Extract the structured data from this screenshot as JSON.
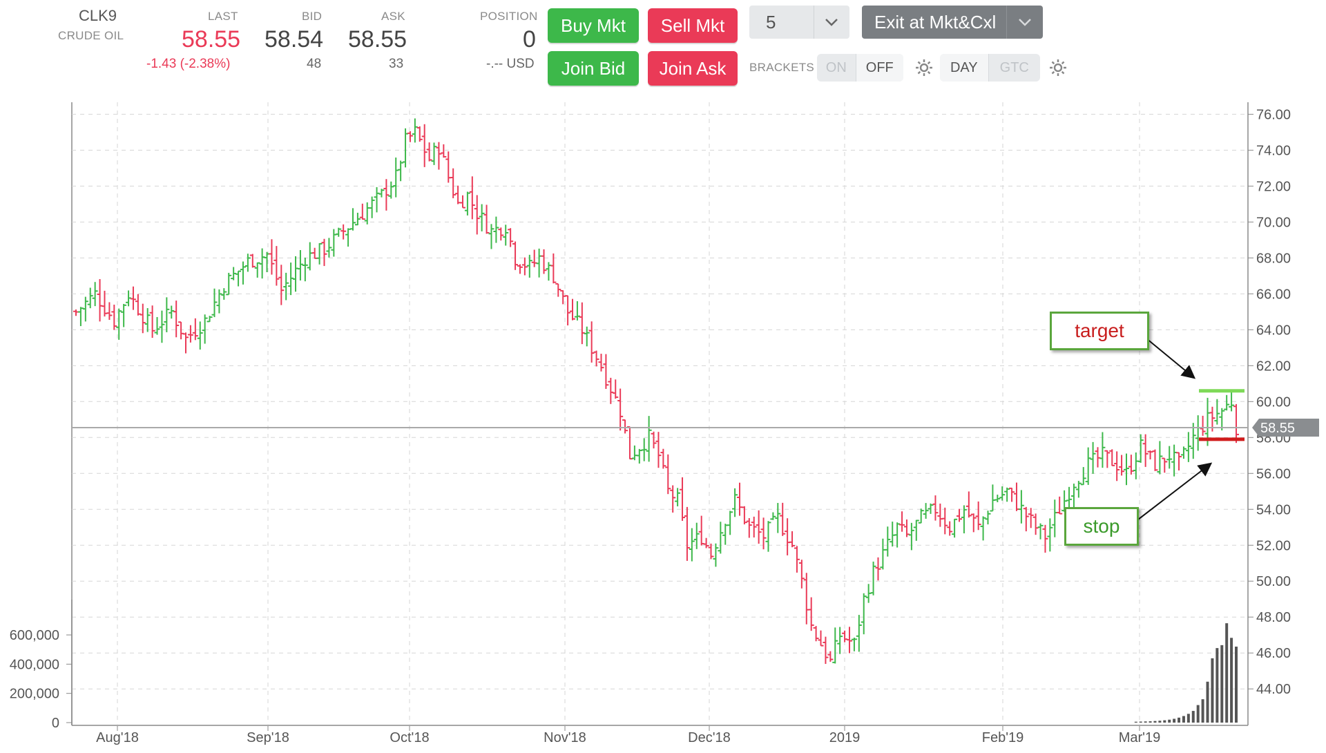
{
  "quote": {
    "symbol": "CLK9",
    "name": "CRUDE OIL",
    "last_label": "LAST",
    "last": "58.55",
    "change": "-1.43 (-2.38%)",
    "bid_label": "BID",
    "bid": "58.54",
    "bid_size": "48",
    "ask_label": "ASK",
    "ask": "58.55",
    "ask_size": "33",
    "position_label": "POSITION",
    "position": "0",
    "pnl": "-.-- USD"
  },
  "buttons": {
    "buy_mkt": "Buy Mkt",
    "sell_mkt": "Sell Mkt",
    "join_bid": "Join Bid",
    "join_ask": "Join Ask",
    "quantity": "5",
    "exit": "Exit at Mkt&Cxl"
  },
  "brackets": {
    "label": "BRACKETS",
    "on": "ON",
    "off": "OFF",
    "day": "DAY",
    "gtc": "GTC"
  },
  "annotations": {
    "target": "target",
    "stop": "stop",
    "current_price_tag": "58.55"
  },
  "colors": {
    "up": "#3db84a",
    "down": "#ea3a57",
    "target_line": "#7ed957",
    "stop_line": "#d01c1c",
    "callout_text": "#c81e1e",
    "stop_text": "#3a9a2a"
  },
  "chart_data": {
    "type": "bar",
    "subtype": "ohlc",
    "y_ticks": [
      "76.00",
      "74.00",
      "72.00",
      "70.00",
      "68.00",
      "66.00",
      "64.00",
      "62.00",
      "60.00",
      "58.00",
      "56.00",
      "54.00",
      "52.00",
      "50.00",
      "48.00",
      "46.00",
      "44.00"
    ],
    "ylim": [
      43.2,
      76.4
    ],
    "x_ticks": [
      "Aug'18",
      "Sep'18",
      "Oct'18",
      "Nov'18",
      "Dec'18",
      "2019",
      "Feb'19",
      "Mar'19"
    ],
    "volume_ticks": [
      "600,000",
      "400,000",
      "200,000",
      "0"
    ],
    "current_price": 58.55,
    "target_price": 60.6,
    "stop_price": 57.9,
    "close_path": [
      [
        0,
        65.0
      ],
      [
        4,
        66.0
      ],
      [
        8,
        64.5
      ],
      [
        11,
        66.0
      ],
      [
        16,
        64.0
      ],
      [
        20,
        65.0
      ],
      [
        23,
        63.5
      ],
      [
        27,
        64.5
      ],
      [
        31,
        66.5
      ],
      [
        36,
        67.8
      ],
      [
        40,
        68.2
      ],
      [
        43,
        66.2
      ],
      [
        48,
        68.0
      ],
      [
        52,
        68.5
      ],
      [
        56,
        69.5
      ],
      [
        60,
        70.5
      ],
      [
        64,
        71.5
      ],
      [
        67,
        72.5
      ],
      [
        69,
        74.5
      ],
      [
        71,
        75.0
      ],
      [
        74,
        73.5
      ],
      [
        76,
        74.2
      ],
      [
        78,
        72.5
      ],
      [
        80,
        71.0
      ],
      [
        82,
        71.5
      ],
      [
        84,
        70.5
      ],
      [
        87,
        69.5
      ],
      [
        90,
        69.8
      ],
      [
        92,
        68.0
      ],
      [
        95,
        67.5
      ],
      [
        97,
        68.0
      ],
      [
        100,
        67.0
      ],
      [
        103,
        65.0
      ],
      [
        106,
        64.0
      ],
      [
        110,
        62.0
      ],
      [
        114,
        59.5
      ],
      [
        116,
        57.0
      ],
      [
        118,
        57.5
      ],
      [
        120,
        58.0
      ],
      [
        122,
        57.0
      ],
      [
        124,
        55.0
      ],
      [
        126,
        54.5
      ],
      [
        128,
        52.0
      ],
      [
        131,
        52.5
      ],
      [
        133,
        51.5
      ],
      [
        136,
        53.5
      ],
      [
        138,
        54.5
      ],
      [
        141,
        53.0
      ],
      [
        144,
        52.5
      ],
      [
        147,
        53.5
      ],
      [
        150,
        52.0
      ],
      [
        152,
        50.0
      ],
      [
        154,
        47.5
      ],
      [
        156,
        46.5
      ],
      [
        158,
        45.5
      ],
      [
        160,
        47.0
      ],
      [
        163,
        46.5
      ],
      [
        165,
        49.0
      ],
      [
        167,
        50.5
      ],
      [
        170,
        52.0
      ],
      [
        172,
        53.0
      ],
      [
        174,
        52.5
      ],
      [
        177,
        53.5
      ],
      [
        180,
        54.0
      ],
      [
        183,
        53.0
      ],
      [
        186,
        54.0
      ],
      [
        189,
        53.0
      ],
      [
        192,
        54.5
      ],
      [
        195,
        55.0
      ],
      [
        198,
        54.0
      ],
      [
        201,
        53.0
      ],
      [
        203,
        52.5
      ],
      [
        206,
        54.0
      ],
      [
        209,
        55.5
      ],
      [
        212,
        56.5
      ],
      [
        215,
        57.0
      ],
      [
        218,
        56.5
      ],
      [
        220,
        56.0
      ],
      [
        223,
        57.5
      ],
      [
        226,
        56.5
      ],
      [
        229,
        57.0
      ],
      [
        231,
        56.5
      ],
      [
        234,
        58.0
      ],
      [
        237,
        59.0
      ],
      [
        240,
        59.5
      ],
      [
        242,
        60.0
      ],
      [
        243,
        58.6
      ]
    ],
    "volume_values": [
      6000,
      7000,
      8000,
      9000,
      11000,
      13000,
      16000,
      20000,
      26000,
      34000,
      45000,
      60000,
      80000,
      120000,
      160000,
      280000,
      440000,
      510000,
      530000,
      680000,
      580000,
      520000
    ]
  }
}
